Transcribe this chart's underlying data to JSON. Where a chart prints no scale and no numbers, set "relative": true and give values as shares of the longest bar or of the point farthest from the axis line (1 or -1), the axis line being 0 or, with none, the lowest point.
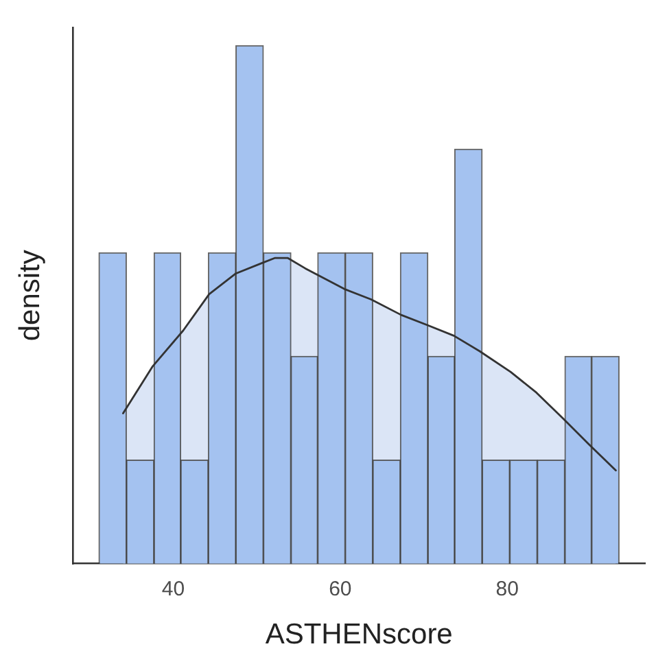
{
  "chart_data": {
    "type": "histogram",
    "xlabel": "ASTHENscore",
    "ylabel": "density",
    "relative": true,
    "grid": false,
    "bins": [
      31.1,
      34.4,
      37.7,
      40.9,
      44.2,
      47.5,
      50.8,
      54.1,
      57.3,
      60.6,
      63.9,
      67.2,
      70.5,
      73.7,
      77.0,
      80.3,
      83.6,
      86.9,
      90.1,
      93.4
    ],
    "values": [
      0.6,
      0.2,
      0.6,
      0.2,
      0.6,
      1,
      0.6,
      0.4,
      0.6,
      0.6,
      0.2,
      0.6,
      0.4,
      0.8,
      0.2,
      0.2,
      0.2,
      0.4,
      0.4
    ],
    "color": "#a4c2f0",
    "xlim": [
      28,
      96.5
    ],
    "xticks": [
      40,
      60,
      80
    ],
    "series": [
      {
        "type": "area",
        "color": "#dbe5f6",
        "x": [
          34.0,
          37.5,
          41.2,
          44.3,
          47.5,
          50.6,
          52.2,
          53.7,
          55.8,
          60.5,
          63.7,
          67.3,
          70.5,
          73.6,
          76.7,
          80.4,
          83.5,
          86.7,
          89.8,
          93.0
        ],
        "values": [
          0.29,
          0.38,
          0.45,
          0.52,
          0.56,
          0.58,
          0.59,
          0.59,
          0.57,
          0.53,
          0.51,
          0.48,
          0.46,
          0.44,
          0.41,
          0.37,
          0.33,
          0.28,
          0.23,
          0.18
        ]
      }
    ]
  }
}
